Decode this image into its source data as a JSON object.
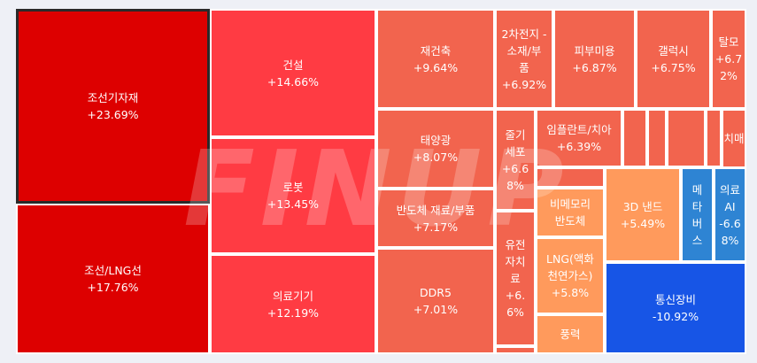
{
  "chart_data": {
    "type": "treemap",
    "watermark": "FINUP",
    "colors": {
      "up_strongest": "#dd0000",
      "up_strong": "#ff3b43",
      "up_mid": "#f2644e",
      "up_mild": "#ff9a5c",
      "down_light": "#2e84d3",
      "down_strong": "#1755e6"
    },
    "tiles": [
      {
        "label": "조선기자재",
        "change": "+23.69%",
        "value": 23.69,
        "selected": true
      },
      {
        "label": "조선/LNG선",
        "change": "+17.76%",
        "value": 17.76
      },
      {
        "label": "건설",
        "change": "+14.66%",
        "value": 14.66
      },
      {
        "label": "로봇",
        "change": "+13.45%",
        "value": 13.45
      },
      {
        "label": "의료기기",
        "change": "+12.19%",
        "value": 12.19
      },
      {
        "label": "재건축",
        "change": "+9.64%",
        "value": 9.64
      },
      {
        "label": "태양광",
        "change": "+8.07%",
        "value": 8.07
      },
      {
        "label": "반도체 재료/부품",
        "change": "+7.17%",
        "value": 7.17
      },
      {
        "label": "DDR5",
        "change": "+7.01%",
        "value": 7.01
      },
      {
        "label": "2차전지 -\n소재/부\n품",
        "change": "+6.92%",
        "value": 6.92
      },
      {
        "label": "피부미용",
        "change": "+6.87%",
        "value": 6.87
      },
      {
        "label": "갤럭시",
        "change": "+6.75%",
        "value": 6.75
      },
      {
        "label": "탈모",
        "change": "+6.7\n2%",
        "value": 6.72
      },
      {
        "label": "줄기\n세포",
        "change": "+6.6\n8%",
        "value": 6.68
      },
      {
        "label": "임플란트/치아",
        "change": "+6.39%",
        "value": 6.39
      },
      {
        "label": "치매",
        "change": "",
        "value": null
      },
      {
        "label": "유전\n자치\n료",
        "change": "+6.\n6%",
        "value": 6.6
      },
      {
        "label": "비메모리\n반도체",
        "change": "",
        "value": null
      },
      {
        "label": "LNG(액화\n천연가스)",
        "change": "+5.8%",
        "value": 5.8
      },
      {
        "label": "3D 낸드",
        "change": "+5.49%",
        "value": 5.49
      },
      {
        "label": "메\n타\n버\n스",
        "change": "",
        "value": null
      },
      {
        "label": "의료\nAI",
        "change": "-6.6\n8%",
        "value": -6.68
      },
      {
        "label": "통신장비",
        "change": "-10.92%",
        "value": -10.92
      },
      {
        "label": "풍력",
        "change": "",
        "value": null
      },
      {
        "label": "",
        "change": "",
        "value": null
      },
      {
        "label": "",
        "change": "",
        "value": null
      },
      {
        "label": "",
        "change": "",
        "value": null
      },
      {
        "label": "",
        "change": "",
        "value": null
      },
      {
        "label": "",
        "change": "",
        "value": null
      },
      {
        "label": "",
        "change": "",
        "value": null
      }
    ]
  }
}
